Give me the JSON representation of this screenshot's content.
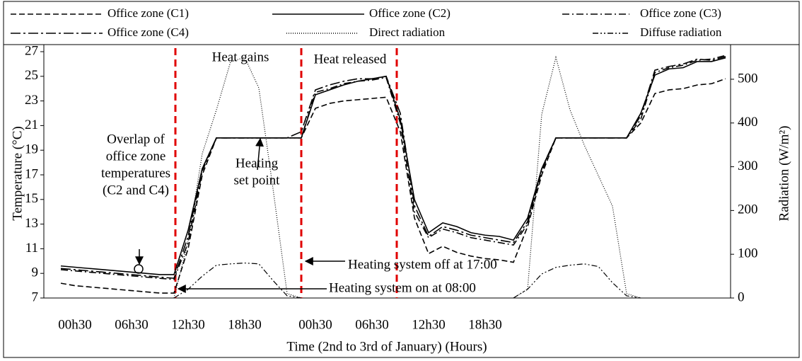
{
  "chart_data": {
    "type": "line",
    "xlabel": "Time (2nd to 3rd of January) (Hours)",
    "ylabel": "Temperature (°C)",
    "y2label": "Radiation (W/m²)",
    "categories": [
      null,
      "00h30",
      null,
      null,
      null,
      "06h30",
      null,
      null,
      null,
      "12h30",
      null,
      null,
      null,
      "18h30",
      null,
      null,
      null,
      null,
      "00h30",
      null,
      null,
      null,
      "06h30",
      null,
      null,
      null,
      "12h30",
      null,
      null,
      null,
      "18h30",
      null,
      null,
      null,
      null,
      null,
      null,
      null,
      null,
      null,
      null,
      null,
      null,
      null,
      null,
      null,
      null,
      null
    ],
    "ylim": [
      7,
      27
    ],
    "yticks": [
      7,
      9,
      11,
      13,
      15,
      17,
      19,
      21,
      23,
      25,
      27
    ],
    "y2lim": [
      0,
      563
    ],
    "y2ticks": [
      0,
      100,
      200,
      300,
      400,
      500
    ],
    "series": [
      {
        "name": "Office zone (C1)",
        "color": "#000000",
        "dash": "8 4",
        "values": [
          8.2,
          8.0,
          7.9,
          7.8,
          7.7,
          7.6,
          7.5,
          7.4,
          7.4,
          11.0,
          17.0,
          20,
          20,
          20,
          20,
          20,
          20,
          20,
          22.4,
          22.8,
          23.0,
          23.1,
          23.2,
          23.3,
          20.5,
          13.5,
          10.6,
          11.2,
          10.7,
          10.4,
          10.2,
          10.1,
          9.9,
          12.8,
          17.0,
          20,
          20,
          20,
          20,
          20,
          20,
          21.2,
          23.6,
          23.9,
          24.0,
          24.3,
          24.4,
          24.8
        ]
      },
      {
        "name": "Office zone (C2)",
        "color": "#000000",
        "dash": "none",
        "values": [
          9.6,
          9.5,
          9.4,
          9.3,
          9.2,
          9.1,
          9.0,
          8.9,
          8.9,
          12.5,
          17.5,
          20,
          20,
          20,
          20,
          20,
          20,
          20,
          23.5,
          23.9,
          24.3,
          24.6,
          24.8,
          25.0,
          21.5,
          15.0,
          12.3,
          13.1,
          12.8,
          12.3,
          12.1,
          12.0,
          11.7,
          13.5,
          17.5,
          20,
          20,
          20,
          20,
          20,
          20,
          22.0,
          25.1,
          25.6,
          25.7,
          26.2,
          26.2,
          26.5
        ]
      },
      {
        "name": "Office zone (C3)",
        "color": "#000000",
        "dash": "10 4 2 4",
        "values": [
          9.3,
          9.2,
          9.1,
          9.0,
          8.9,
          8.8,
          8.7,
          8.6,
          8.5,
          11.5,
          17.3,
          20,
          20,
          20,
          20,
          20,
          20,
          20,
          23.7,
          24.0,
          24.4,
          24.6,
          24.7,
          24.9,
          21.2,
          14.0,
          11.9,
          12.6,
          12.3,
          11.9,
          11.7,
          11.5,
          11.3,
          13.0,
          17.3,
          20,
          20,
          20,
          20,
          20,
          20,
          21.5,
          25.3,
          25.7,
          25.9,
          26.3,
          26.4,
          26.7
        ]
      },
      {
        "name": "Office zone (C4)",
        "color": "#000000",
        "dash": "14 4 3 4",
        "values": [
          9.4,
          9.3,
          9.2,
          9.1,
          9.0,
          8.9,
          8.8,
          8.7,
          8.6,
          12.0,
          17.5,
          20,
          20,
          20,
          20,
          20,
          20,
          20.5,
          23.9,
          24.3,
          24.6,
          24.8,
          24.8,
          25.0,
          22.0,
          14.5,
          12.0,
          12.8,
          12.5,
          12.1,
          11.9,
          11.7,
          11.5,
          13.2,
          17.5,
          20,
          20,
          20,
          20,
          20,
          20,
          21.8,
          25.5,
          25.8,
          26.0,
          26.4,
          26.3,
          26.6
        ]
      },
      {
        "name": "Direct radiation",
        "color": "#000000",
        "dash": "1 2",
        "axis": "y2",
        "values": [
          null,
          null,
          null,
          null,
          null,
          null,
          null,
          null,
          0,
          130,
          330,
          430,
          540,
          550,
          480,
          250,
          10,
          0,
          null,
          null,
          null,
          null,
          null,
          null,
          null,
          null,
          null,
          null,
          null,
          null,
          null,
          null,
          0,
          20,
          420,
          550,
          430,
          350,
          280,
          210,
          10,
          0,
          null,
          null,
          null,
          null,
          null,
          null
        ]
      },
      {
        "name": "Diffuse radiation",
        "color": "#000000",
        "dash": "8 3 2 3 2 3",
        "axis": "y2",
        "values": [
          null,
          null,
          null,
          null,
          null,
          null,
          null,
          null,
          0,
          20,
          50,
          75,
          78,
          80,
          78,
          40,
          5,
          0,
          null,
          null,
          null,
          null,
          null,
          null,
          null,
          null,
          null,
          null,
          null,
          null,
          null,
          null,
          0,
          20,
          55,
          70,
          75,
          78,
          72,
          35,
          5,
          0,
          null,
          null,
          null,
          null,
          null,
          null
        ]
      }
    ],
    "annotations": [
      "Heat gains",
      "Heat released",
      "Heating system off at 17:00",
      "Heating system on at 08:00",
      "Overlap of",
      "office zone",
      "temperatures",
      "(C2 and C4)",
      "Heating",
      "set point"
    ]
  }
}
